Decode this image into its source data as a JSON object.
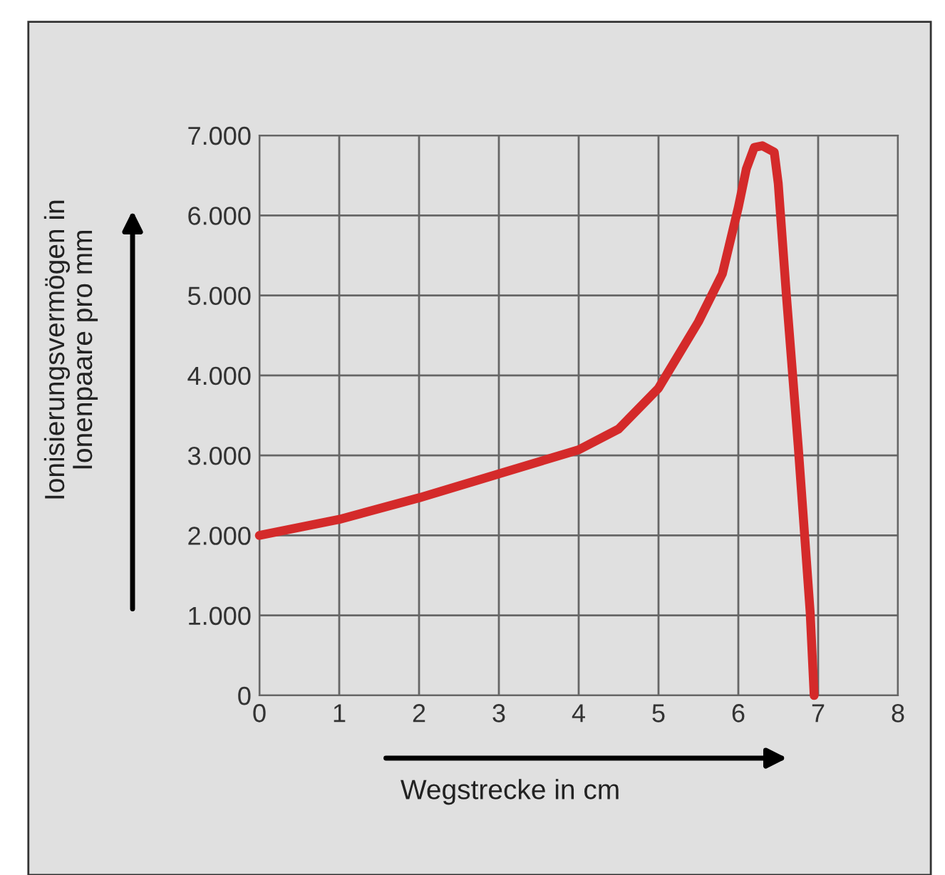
{
  "chart_data": {
    "type": "line",
    "xlabel": "Wegstrecke in cm",
    "ylabel": "Ionisierungsvermögen in\nIonenpaare pro mm",
    "x": [
      0,
      1,
      2,
      3,
      4,
      4.5,
      5,
      5.5,
      5.8,
      6.0,
      6.1,
      6.2,
      6.3,
      6.45,
      6.5,
      6.6,
      6.75,
      6.9,
      6.95
    ],
    "series": [
      {
        "color": "#d42a2a",
        "values": [
          2000,
          2200,
          2470,
          2770,
          3070,
          3330,
          3840,
          4670,
          5270,
          6100,
          6580,
          6850,
          6870,
          6790,
          6400,
          5030,
          3120,
          1040,
          0
        ]
      }
    ],
    "xlim": [
      0,
      8
    ],
    "xticks": [
      0,
      1,
      2,
      3,
      4,
      5,
      6,
      7,
      8
    ],
    "ylim": [
      0,
      7000
    ],
    "yticks": [
      0,
      {
        "value": 1000,
        "label": "1.000"
      },
      {
        "value": 2000,
        "label": "2.000"
      },
      {
        "value": 3000,
        "label": "3.000"
      },
      {
        "value": 4000,
        "label": "4.000"
      },
      {
        "value": 5000,
        "label": "5.000"
      },
      {
        "value": 6000,
        "label": "6.000"
      },
      {
        "value": 7000,
        "label": "7.000"
      }
    ],
    "grid": true,
    "marker": "none",
    "line_style": "solid",
    "legend": false
  }
}
